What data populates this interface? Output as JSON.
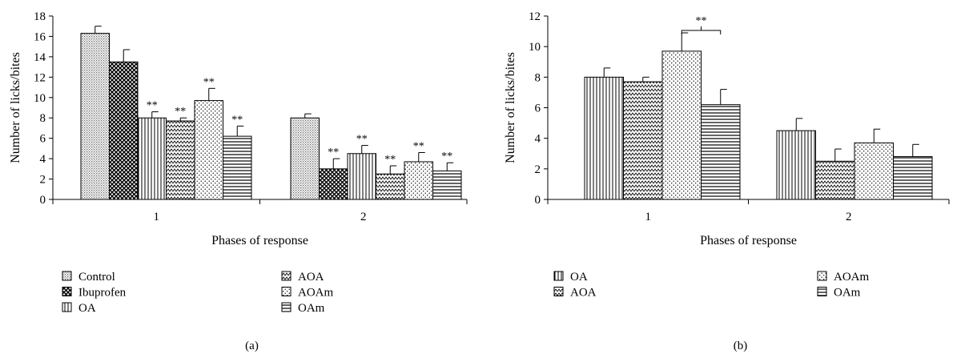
{
  "chart_data": [
    {
      "type": "bar",
      "panel_label": "(a)",
      "xlabel": "Phases of response",
      "ylabel": "Number of licks/bites",
      "ylim": [
        0,
        18
      ],
      "yticks": [
        0,
        2,
        4,
        6,
        8,
        10,
        12,
        14,
        16,
        18
      ],
      "categories": [
        "1",
        "2"
      ],
      "grid": false,
      "legend_position": "bottom",
      "series": [
        {
          "name": "Control",
          "pattern": "dots-fine",
          "values": [
            16.3,
            8.0
          ],
          "errors": [
            0.7,
            0.4
          ],
          "sig": [
            "",
            ""
          ]
        },
        {
          "name": "Ibuprofen",
          "pattern": "crosshatch",
          "values": [
            13.5,
            3.0
          ],
          "errors": [
            1.2,
            1.0
          ],
          "sig": [
            "",
            "**"
          ]
        },
        {
          "name": "OA",
          "pattern": "vertical",
          "values": [
            8.0,
            4.5
          ],
          "errors": [
            0.6,
            0.8
          ],
          "sig": [
            "**",
            "**"
          ]
        },
        {
          "name": "AOA",
          "pattern": "zigzag",
          "values": [
            7.7,
            2.5
          ],
          "errors": [
            0.3,
            0.8
          ],
          "sig": [
            "**",
            "**"
          ]
        },
        {
          "name": "AOAm",
          "pattern": "dots-sparse",
          "values": [
            9.7,
            3.7
          ],
          "errors": [
            1.2,
            0.9
          ],
          "sig": [
            "**",
            "**"
          ]
        },
        {
          "name": "OAm",
          "pattern": "horizontal",
          "values": [
            6.2,
            2.8
          ],
          "errors": [
            1.0,
            0.8
          ],
          "sig": [
            "**",
            "**"
          ]
        }
      ]
    },
    {
      "type": "bar",
      "panel_label": "(b)",
      "xlabel": "Phases of response",
      "ylabel": "Number of licks/bites",
      "ylim": [
        0,
        12
      ],
      "yticks": [
        0,
        2,
        4,
        6,
        8,
        10,
        12
      ],
      "categories": [
        "1",
        "2"
      ],
      "grid": false,
      "legend_position": "bottom",
      "bracket": {
        "from_series": 2,
        "to_series": 3,
        "category": 0,
        "label": "**"
      },
      "series": [
        {
          "name": "OA",
          "pattern": "vertical",
          "values": [
            8.0,
            4.5
          ],
          "errors": [
            0.6,
            0.8
          ],
          "sig": [
            "",
            ""
          ]
        },
        {
          "name": "AOA",
          "pattern": "zigzag",
          "values": [
            7.7,
            2.5
          ],
          "errors": [
            0.3,
            0.8
          ],
          "sig": [
            "",
            ""
          ]
        },
        {
          "name": "AOAm",
          "pattern": "dots-sparse",
          "values": [
            9.7,
            3.7
          ],
          "errors": [
            1.2,
            0.9
          ],
          "sig": [
            "",
            ""
          ]
        },
        {
          "name": "OAm",
          "pattern": "horizontal",
          "values": [
            6.2,
            2.8
          ],
          "errors": [
            1.0,
            0.8
          ],
          "sig": [
            "",
            ""
          ]
        }
      ]
    }
  ]
}
